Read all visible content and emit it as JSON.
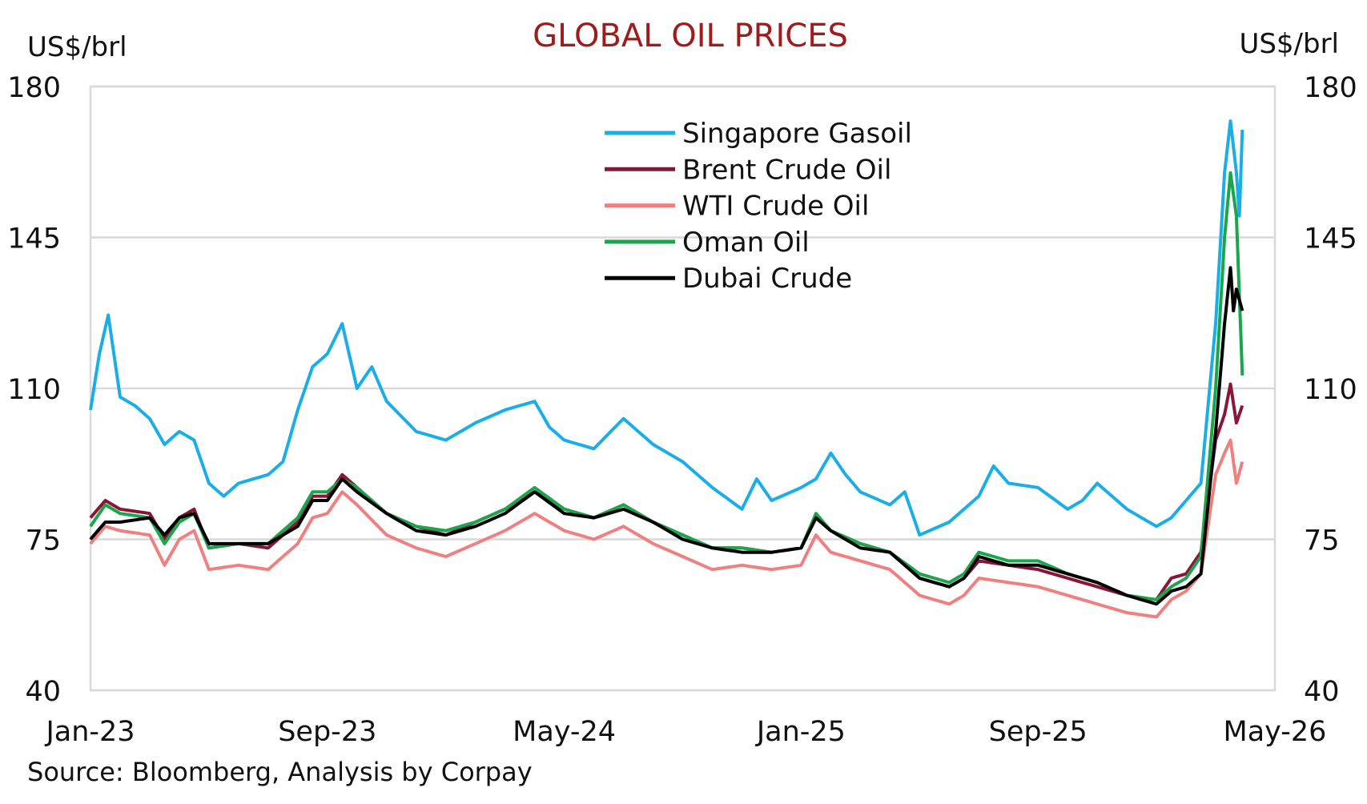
{
  "chart_data": {
    "type": "line",
    "title": "GLOBAL OIL PRICES",
    "ylabel_left": "US$/brl",
    "ylabel_right": "US$/brl",
    "ylim": [
      40,
      180
    ],
    "yticks": [
      180,
      145,
      110,
      75,
      40
    ],
    "x_unit": "months since Jan-23",
    "xlim": [
      0,
      40
    ],
    "xticks": [
      {
        "m": 0,
        "label": "Jan-23"
      },
      {
        "m": 8,
        "label": "Sep-23"
      },
      {
        "m": 16,
        "label": "May-24"
      },
      {
        "m": 24,
        "label": "Jan-25"
      },
      {
        "m": 32,
        "label": "Sep-25"
      },
      {
        "m": 40,
        "label": "May-26"
      }
    ],
    "grid": true,
    "legend_position": "top-center",
    "source": "Source: Bloomberg, Analysis by Corpay",
    "series": [
      {
        "name": "Singapore Gasoil",
        "color": "#1aaee8",
        "x": [
          0,
          0.3,
          0.6,
          1,
          1.5,
          2,
          2.5,
          3,
          3.5,
          4,
          4.5,
          5,
          6,
          6.5,
          7,
          7.5,
          8,
          8.5,
          9,
          9.5,
          10,
          11,
          12,
          13,
          14,
          15,
          15.5,
          16,
          17,
          18,
          19,
          20,
          21,
          22,
          22.5,
          23,
          24,
          24.5,
          25,
          25.5,
          26,
          27,
          27.5,
          28,
          29,
          30,
          30.5,
          31,
          32,
          33,
          33.5,
          34,
          35,
          36,
          36.5,
          37,
          37.5,
          38,
          38.3,
          38.5,
          38.7,
          38.8,
          38.9
        ],
        "y": [
          105,
          118,
          127,
          108,
          106,
          103,
          97,
          100,
          98,
          88,
          85,
          88,
          90,
          93,
          105,
          115,
          118,
          125,
          110,
          115,
          107,
          100,
          98,
          102,
          105,
          107,
          101,
          98,
          96,
          103,
          97,
          93,
          87,
          82,
          89,
          84,
          87,
          89,
          95,
          90,
          86,
          83,
          86,
          76,
          79,
          85,
          92,
          88,
          87,
          82,
          84,
          88,
          82,
          78,
          80,
          84,
          88,
          125,
          160,
          172,
          160,
          150,
          170
        ]
      },
      {
        "name": "Brent Crude Oil",
        "color": "#8b1538",
        "x": [
          0,
          0.5,
          1,
          2,
          2.5,
          3,
          3.5,
          4,
          5,
          6,
          7,
          7.5,
          8,
          8.5,
          9,
          10,
          11,
          12,
          13,
          14,
          15,
          16,
          17,
          18,
          19,
          20,
          21,
          22,
          23,
          24,
          24.5,
          25,
          26,
          27,
          28,
          29,
          29.5,
          30,
          31,
          32,
          33,
          34,
          35,
          36,
          36.5,
          37,
          37.5,
          38,
          38.3,
          38.5,
          38.7,
          38.9
        ],
        "y": [
          80,
          84,
          82,
          81,
          75,
          80,
          82,
          73,
          74,
          73,
          79,
          85,
          85,
          90,
          87,
          81,
          78,
          76,
          79,
          82,
          86,
          82,
          80,
          83,
          79,
          76,
          73,
          73,
          72,
          73,
          80,
          77,
          74,
          72,
          66,
          64,
          66,
          70,
          69,
          68,
          66,
          64,
          62,
          61,
          66,
          67,
          72,
          98,
          104,
          111,
          102,
          106
        ]
      },
      {
        "name": "WTI Crude Oil",
        "color": "#f08080",
        "x": [
          0,
          0.5,
          1,
          2,
          2.5,
          3,
          3.5,
          4,
          5,
          6,
          7,
          7.5,
          8,
          8.5,
          9,
          10,
          11,
          12,
          13,
          14,
          15,
          16,
          17,
          18,
          19,
          20,
          21,
          22,
          23,
          24,
          24.5,
          25,
          26,
          27,
          28,
          29,
          29.5,
          30,
          31,
          32,
          33,
          34,
          35,
          36,
          36.5,
          37,
          37.5,
          38,
          38.3,
          38.5,
          38.7,
          38.9
        ],
        "y": [
          74,
          78,
          77,
          76,
          69,
          75,
          77,
          68,
          69,
          68,
          74,
          80,
          81,
          86,
          83,
          76,
          73,
          71,
          74,
          77,
          81,
          77,
          75,
          78,
          74,
          71,
          68,
          69,
          68,
          69,
          76,
          72,
          70,
          68,
          62,
          60,
          62,
          66,
          65,
          64,
          62,
          60,
          58,
          57,
          61,
          63,
          67,
          90,
          95,
          98,
          88,
          93
        ]
      },
      {
        "name": "Oman Oil",
        "color": "#1aa64a",
        "x": [
          0,
          0.5,
          1,
          2,
          2.5,
          3,
          3.5,
          4,
          5,
          6,
          7,
          7.5,
          8,
          8.5,
          9,
          10,
          11,
          12,
          13,
          14,
          15,
          16,
          17,
          18,
          19,
          20,
          21,
          22,
          23,
          24,
          24.5,
          25,
          26,
          27,
          28,
          29,
          29.5,
          30,
          31,
          32,
          33,
          34,
          35,
          36,
          36.5,
          37,
          37.5,
          38,
          38.3,
          38.5,
          38.7,
          38.9
        ],
        "y": [
          78,
          83,
          81,
          80,
          74,
          79,
          81,
          73,
          74,
          74,
          80,
          86,
          86,
          89,
          87,
          81,
          78,
          77,
          79,
          82,
          87,
          82,
          80,
          83,
          79,
          76,
          73,
          73,
          72,
          73,
          81,
          77,
          74,
          72,
          67,
          65,
          67,
          72,
          70,
          70,
          67,
          65,
          62,
          61,
          64,
          66,
          71,
          110,
          145,
          160,
          150,
          113
        ]
      },
      {
        "name": "Dubai Crude",
        "color": "#000000",
        "x": [
          0,
          0.5,
          1,
          2,
          2.5,
          3,
          3.5,
          4,
          5,
          6,
          7,
          7.5,
          8,
          8.5,
          9,
          10,
          11,
          12,
          13,
          14,
          15,
          16,
          17,
          18,
          19,
          20,
          21,
          22,
          23,
          24,
          24.5,
          25,
          26,
          27,
          28,
          29,
          29.5,
          30,
          31,
          32,
          33,
          34,
          35,
          36,
          36.5,
          37,
          37.5,
          38,
          38.3,
          38.5,
          38.6,
          38.7,
          38.9
        ],
        "y": [
          75,
          79,
          79,
          80,
          76,
          80,
          81,
          74,
          74,
          74,
          78,
          84,
          84,
          89,
          86,
          81,
          77,
          76,
          78,
          81,
          86,
          81,
          80,
          82,
          79,
          75,
          73,
          72,
          72,
          73,
          80,
          77,
          73,
          72,
          66,
          64,
          66,
          71,
          69,
          69,
          67,
          65,
          62,
          60,
          63,
          64,
          67,
          100,
          125,
          138,
          128,
          133,
          128
        ]
      }
    ]
  }
}
